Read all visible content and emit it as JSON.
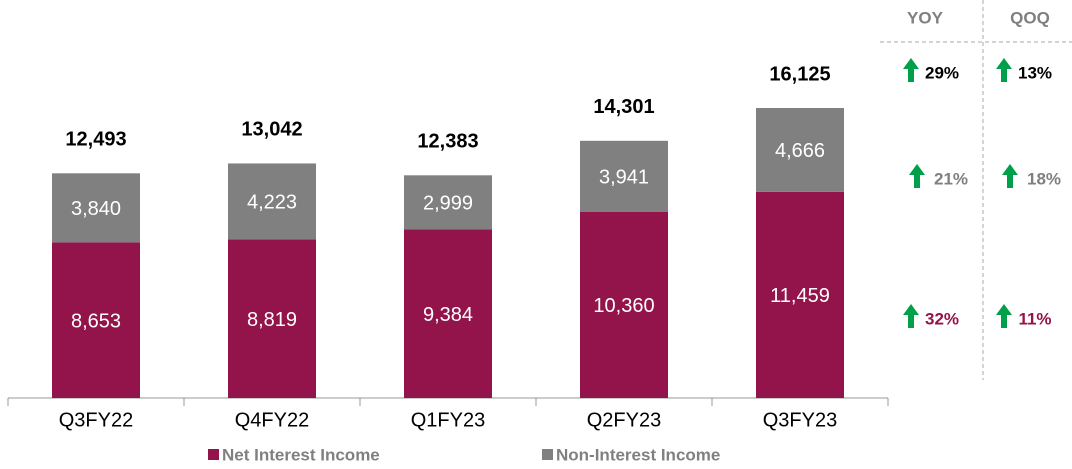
{
  "chart_data": {
    "type": "stacked_bar",
    "categories": [
      "Q3FY22",
      "Q4FY22",
      "Q1FY23",
      "Q2FY23",
      "Q3FY23"
    ],
    "series": [
      {
        "name": "Net Interest Income",
        "color": "#93144b",
        "values": [
          8653,
          8819,
          9384,
          10360,
          11459
        ],
        "value_labels": [
          "8,653",
          "8,819",
          "9,384",
          "10,360",
          "11,459"
        ]
      },
      {
        "name": "Non-Interest Income",
        "color": "#808080",
        "values": [
          3840,
          4223,
          2999,
          3941,
          4666
        ],
        "value_labels": [
          "3,840",
          "4,223",
          "2,999",
          "3,941",
          "4,666"
        ]
      }
    ],
    "totals": {
      "values": [
        12493,
        13042,
        12383,
        14301,
        16125
      ],
      "value_labels": [
        "12,493",
        "13,042",
        "12,383",
        "14,301",
        "16,125"
      ]
    },
    "growth": {
      "columns": [
        "YOY",
        "QOQ"
      ],
      "rows": [
        {
          "values": [
            29,
            13
          ],
          "value_labels": [
            "29%",
            "13%"
          ],
          "color": "#000000"
        },
        {
          "values": [
            21,
            18
          ],
          "value_labels": [
            "21%",
            "18%"
          ],
          "color": "#808080"
        },
        {
          "values": [
            32,
            11
          ],
          "value_labels": [
            "32%",
            "11%"
          ],
          "color": "#93144b"
        }
      ]
    }
  }
}
